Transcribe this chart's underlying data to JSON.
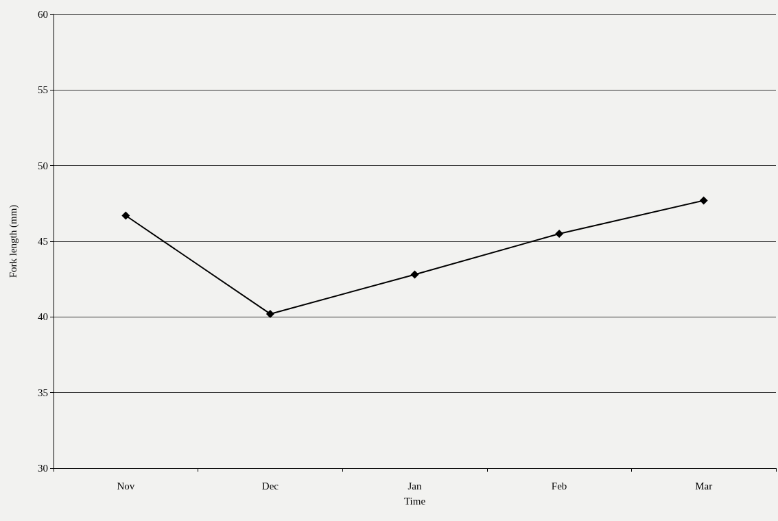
{
  "chart_data": {
    "type": "line",
    "xlabel": "Time",
    "ylabel": "Fork length (mm)",
    "categories": [
      "Nov",
      "Dec",
      "Jan",
      "Feb",
      "Mar"
    ],
    "series": [
      {
        "color": "#000000",
        "values": [
          46.7,
          40.2,
          42.8,
          45.5,
          47.7
        ]
      }
    ],
    "ylim": [
      30,
      60
    ],
    "yticks": [
      30,
      35,
      40,
      45,
      50,
      55,
      60
    ],
    "grid": "y",
    "marker": "diamond",
    "line_style": "solid"
  }
}
